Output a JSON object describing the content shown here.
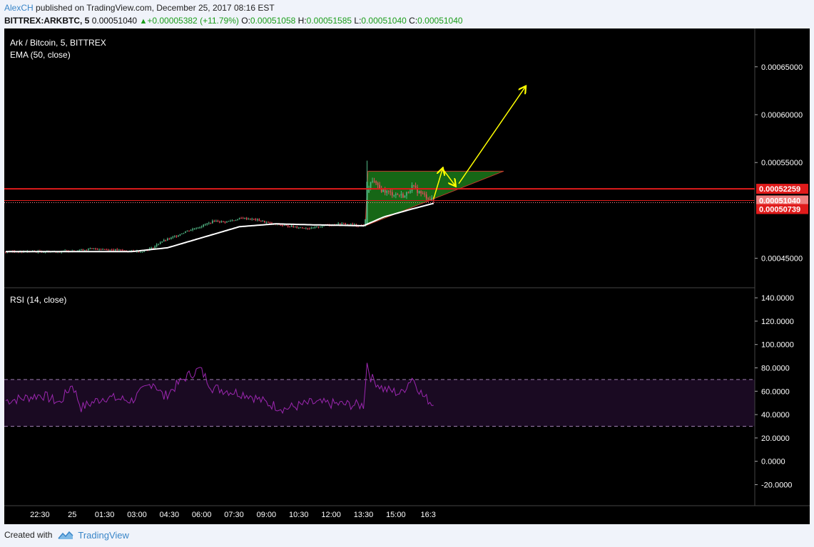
{
  "header": {
    "author": "AlexCH",
    "published": "published on TradingView.com, December 25, 2017 08:16 EST",
    "symbol": "BITTREX:ARKBTC, 5",
    "last": "0.00051040",
    "change": "+0.00005382 (+11.79%)",
    "o_label": "O:",
    "o": "0.00051058",
    "h_label": "H:",
    "h": "0.00051585",
    "l_label": "L:",
    "l": "0.00051040",
    "c_label": "C:",
    "c": "0.00051040"
  },
  "footer": {
    "created_with": "Created with",
    "brand": "TradingView"
  },
  "colors": {
    "background": "#000000",
    "up": "#53b987",
    "down": "#eb4d5c",
    "ema": "#ffffff",
    "rsi": "#9c27b0",
    "rsi_band": "#1a0a22",
    "hline": "#e01b1b",
    "annotation": "#ffff00",
    "triangle_fill": "#1d8a1d"
  },
  "chart_data": [
    {
      "type": "candlestick",
      "title": "Ark / Bitcoin, 5, BITTREX",
      "indicator_label": "EMA (50, close)",
      "x_ticks": [
        "22:30",
        "25",
        "01:30",
        "03:00",
        "04:30",
        "06:00",
        "07:30",
        "09:00",
        "10:30",
        "12:00",
        "13:30",
        "15:00",
        "16:3"
      ],
      "y_ticks": [
        "0.00065000",
        "0.00060000",
        "0.00055000",
        "0.00045000"
      ],
      "y_tick_values": [
        0.00065,
        0.0006,
        0.00055,
        0.00045
      ],
      "ylim": [
        0.00042,
        0.00069
      ],
      "price_labels": [
        {
          "text": "0.00052259",
          "value": 0.00052259
        },
        {
          "text": "0.00051040",
          "value": 0.0005104
        },
        {
          "text": "0.00050739",
          "value": 0.00050739
        }
      ],
      "horizontal_lines": [
        0.00052259,
        0.0005104
      ],
      "close_series_anchors": [
        [
          0,
          0.000457
        ],
        [
          30,
          0.000457
        ],
        [
          50,
          0.00046
        ],
        [
          75,
          0.000457
        ],
        [
          82,
          0.000461
        ],
        [
          86,
          0.000467
        ],
        [
          92,
          0.000471
        ],
        [
          100,
          0.000478
        ],
        [
          108,
          0.000483
        ],
        [
          116,
          0.000489
        ],
        [
          122,
          0.000488
        ],
        [
          132,
          0.000492
        ],
        [
          140,
          0.00049
        ],
        [
          148,
          0.000486
        ],
        [
          160,
          0.000483
        ],
        [
          170,
          0.000481
        ],
        [
          178,
          0.000485
        ],
        [
          188,
          0.000486
        ],
        [
          198,
          0.000484
        ],
        [
          199,
          0.000484
        ],
        [
          200,
          0.00049
        ],
        [
          201,
          0.00052
        ],
        [
          204,
          0.000532
        ],
        [
          208,
          0.000522
        ],
        [
          214,
          0.000518
        ],
        [
          222,
          0.000515
        ],
        [
          226,
          0.000525
        ],
        [
          230,
          0.000519
        ],
        [
          236,
          0.000512
        ],
        [
          238,
          0.0005104
        ]
      ],
      "ema_anchors": [
        [
          0,
          0.000457
        ],
        [
          70,
          0.000457
        ],
        [
          90,
          0.000461
        ],
        [
          110,
          0.000472
        ],
        [
          130,
          0.000483
        ],
        [
          150,
          0.000486
        ],
        [
          170,
          0.000485
        ],
        [
          199,
          0.000484
        ],
        [
          210,
          0.000493
        ],
        [
          225,
          0.000501
        ],
        [
          238,
          0.0005074
        ]
      ],
      "candle_count": 239
    },
    {
      "type": "line",
      "title": "RSI (14, close)",
      "y_ticks": [
        "140.0000",
        "120.0000",
        "100.0000",
        "80.0000",
        "60.0000",
        "40.0000",
        "20.0000",
        "0.0000",
        "-20.0000"
      ],
      "y_tick_values": [
        140,
        120,
        100,
        80,
        60,
        40,
        20,
        0,
        -20
      ],
      "ylim": [
        -38,
        148
      ],
      "band": [
        30,
        70
      ],
      "rsi_anchors": [
        [
          0,
          52
        ],
        [
          10,
          54
        ],
        [
          20,
          57
        ],
        [
          30,
          50
        ],
        [
          37,
          66
        ],
        [
          42,
          46
        ],
        [
          55,
          55
        ],
        [
          70,
          52
        ],
        [
          82,
          68
        ],
        [
          88,
          55
        ],
        [
          100,
          72
        ],
        [
          108,
          79
        ],
        [
          115,
          63
        ],
        [
          125,
          60
        ],
        [
          135,
          57
        ],
        [
          145,
          50
        ],
        [
          155,
          45
        ],
        [
          170,
          50
        ],
        [
          185,
          49
        ],
        [
          199,
          48
        ],
        [
          201,
          84
        ],
        [
          203,
          72
        ],
        [
          210,
          62
        ],
        [
          220,
          58
        ],
        [
          226,
          72
        ],
        [
          232,
          56
        ],
        [
          238,
          49
        ]
      ]
    }
  ]
}
